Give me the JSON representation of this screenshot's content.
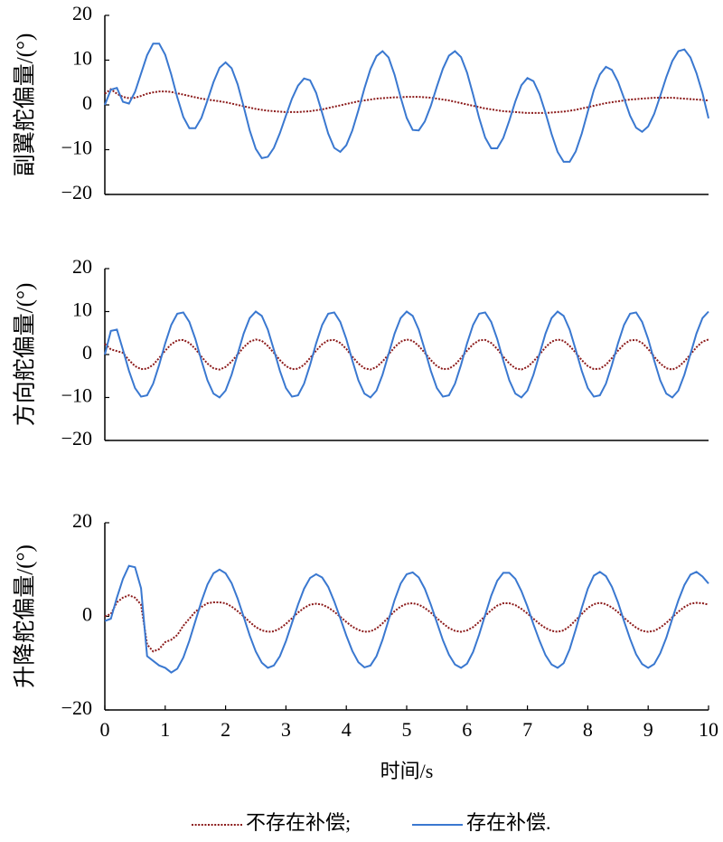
{
  "chart_data": [
    {
      "type": "line",
      "y_label": "副翼舵偏量/(°)",
      "x": [
        0,
        0.1,
        0.2,
        0.3,
        0.4,
        0.5,
        0.6,
        0.7,
        0.8,
        0.9,
        1,
        1.1,
        1.2,
        1.3,
        1.4,
        1.5,
        1.6,
        1.7,
        1.8,
        1.9,
        2,
        2.1,
        2.2,
        2.3,
        2.4,
        2.5,
        2.6,
        2.7,
        2.8,
        2.9,
        3,
        3.1,
        3.2,
        3.3,
        3.4,
        3.5,
        3.6,
        3.7,
        3.8,
        3.9,
        4,
        4.1,
        4.2,
        4.3,
        4.4,
        4.5,
        4.6,
        4.7,
        4.8,
        4.9,
        5,
        5.1,
        5.2,
        5.3,
        5.4,
        5.5,
        5.6,
        5.7,
        5.8,
        5.9,
        6,
        6.1,
        6.2,
        6.3,
        6.4,
        6.5,
        6.6,
        6.7,
        6.8,
        6.9,
        7,
        7.1,
        7.2,
        7.3,
        7.4,
        7.5,
        7.6,
        7.7,
        7.8,
        7.9,
        8,
        8.1,
        8.2,
        8.3,
        8.4,
        8.5,
        8.6,
        8.7,
        8.8,
        8.9,
        9,
        9.1,
        9.2,
        9.3,
        9.4,
        9.5,
        9.6,
        9.7,
        9.8,
        9.9,
        10
      ],
      "xlim": [
        0,
        10
      ],
      "ylim": [
        -20,
        20
      ],
      "yticks": [
        {
          "value": -20,
          "label": "−20"
        },
        {
          "value": -10,
          "label": "−10"
        },
        0,
        10,
        20
      ],
      "series": [
        {
          "color": "#8b1a1a",
          "style": "dotted",
          "values": [
            2.5,
            3.5,
            2.5,
            1.8,
            1.5,
            1.6,
            2.0,
            2.5,
            2.8,
            3.0,
            3.0,
            2.9,
            2.6,
            2.3,
            2.0,
            1.7,
            1.4,
            1.2,
            1.0,
            0.8,
            0.6,
            0.3,
            0.0,
            -0.3,
            -0.6,
            -0.9,
            -1.1,
            -1.3,
            -1.4,
            -1.5,
            -1.6,
            -1.6,
            -1.6,
            -1.5,
            -1.4,
            -1.2,
            -1.0,
            -0.7,
            -0.4,
            -0.1,
            0.2,
            0.5,
            0.8,
            1.0,
            1.2,
            1.4,
            1.5,
            1.6,
            1.7,
            1.7,
            1.8,
            1.8,
            1.8,
            1.7,
            1.6,
            1.4,
            1.2,
            1.0,
            0.7,
            0.4,
            0.1,
            -0.2,
            -0.5,
            -0.8,
            -1.0,
            -1.2,
            -1.4,
            -1.5,
            -1.6,
            -1.7,
            -1.8,
            -1.8,
            -1.8,
            -1.8,
            -1.7,
            -1.6,
            -1.5,
            -1.3,
            -1.1,
            -0.8,
            -0.5,
            -0.2,
            0.1,
            0.4,
            0.6,
            0.8,
            1.0,
            1.2,
            1.3,
            1.4,
            1.5,
            1.6,
            1.6,
            1.6,
            1.6,
            1.5,
            1.4,
            1.3,
            1.2,
            1.1,
            1.0
          ]
        },
        {
          "color": "#3a78d0",
          "style": "solid",
          "values": [
            0,
            3.4,
            3.8,
            0.7,
            0.3,
            2.9,
            7,
            11.1,
            13.7,
            13.7,
            11.2,
            6.8,
            1.7,
            -2.7,
            -5.2,
            -5.2,
            -2.9,
            1.0,
            5.1,
            8.3,
            9.5,
            8.2,
            4.6,
            -0.4,
            -5.7,
            -9.8,
            -11.9,
            -11.6,
            -9.6,
            -6.3,
            -2.4,
            1.4,
            4.3,
            5.9,
            5.5,
            2.7,
            -1.8,
            -6.4,
            -9.6,
            -10.5,
            -9.0,
            -5.7,
            -1.2,
            3.7,
            8.0,
            10.9,
            12,
            10.6,
            6.7,
            1.7,
            -2.9,
            -5.6,
            -5.7,
            -3.7,
            -0.2,
            4.1,
            8.1,
            11.0,
            12,
            10.7,
            7.2,
            2.3,
            -2.9,
            -7.3,
            -9.7,
            -9.7,
            -7.4,
            -3.5,
            0.8,
            4.4,
            6.0,
            5.3,
            2.4,
            -1.8,
            -6.5,
            -10.5,
            -12.7,
            -12.7,
            -10.4,
            -6.4,
            -1.5,
            3.3,
            6.8,
            8.5,
            7.8,
            5.2,
            1.5,
            -2.4,
            -5.1,
            -6.0,
            -4.8,
            -2.0,
            2.0,
            6.2,
            9.8,
            12.0,
            12.4,
            10.6,
            7.1,
            2.6,
            -3
          ]
        }
      ]
    },
    {
      "type": "line",
      "y_label": "方向舵偏量/(°)",
      "x": [
        0,
        0.1,
        0.2,
        0.3,
        0.4,
        0.5,
        0.6,
        0.7,
        0.8,
        0.9,
        1,
        1.1,
        1.2,
        1.3,
        1.4,
        1.5,
        1.6,
        1.7,
        1.8,
        1.9,
        2,
        2.1,
        2.2,
        2.3,
        2.4,
        2.5,
        2.6,
        2.7,
        2.8,
        2.9,
        3,
        3.1,
        3.2,
        3.3,
        3.4,
        3.5,
        3.6,
        3.7,
        3.8,
        3.9,
        4,
        4.1,
        4.2,
        4.3,
        4.4,
        4.5,
        4.6,
        4.7,
        4.8,
        4.9,
        5,
        5.1,
        5.2,
        5.3,
        5.4,
        5.5,
        5.6,
        5.7,
        5.8,
        5.9,
        6,
        6.1,
        6.2,
        6.3,
        6.4,
        6.5,
        6.6,
        6.7,
        6.8,
        6.9,
        7,
        7.1,
        7.2,
        7.3,
        7.4,
        7.5,
        7.6,
        7.7,
        7.8,
        7.9,
        8,
        8.1,
        8.2,
        8.3,
        8.4,
        8.5,
        8.6,
        8.7,
        8.8,
        8.9,
        9,
        9.1,
        9.2,
        9.3,
        9.4,
        9.5,
        9.6,
        9.7,
        9.8,
        9.9,
        10
      ],
      "xlim": [
        0,
        10
      ],
      "ylim": [
        -20,
        20
      ],
      "yticks": [
        {
          "value": -20,
          "label": "−20"
        },
        {
          "value": -10,
          "label": "−10"
        },
        0,
        10,
        20
      ],
      "series": [
        {
          "color": "#8b1a1a",
          "style": "dotted",
          "values": [
            2.5,
            1.2,
            0.8,
            0.4,
            -1.3,
            -2.7,
            -3.4,
            -3.3,
            -2.4,
            -0.8,
            0.9,
            2.4,
            3.3,
            3.4,
            2.7,
            1.3,
            -0.5,
            -2.1,
            -3.2,
            -3.5,
            -2.9,
            -1.6,
            0.0,
            1.7,
            3.0,
            3.5,
            3.2,
            2.0,
            0.4,
            -1.3,
            -2.7,
            -3.4,
            -3.3,
            -2.4,
            -0.8,
            0.9,
            2.4,
            3.3,
            3.4,
            2.7,
            1.3,
            -0.5,
            -2.1,
            -3.2,
            -3.5,
            -2.9,
            -1.6,
            0.0,
            1.7,
            3.0,
            3.5,
            3.2,
            2.0,
            0.4,
            -1.3,
            -2.7,
            -3.4,
            -3.3,
            -2.4,
            -0.8,
            0.9,
            2.4,
            3.3,
            3.4,
            2.7,
            1.3,
            -0.5,
            -2.1,
            -3.2,
            -3.5,
            -2.9,
            -1.6,
            0.0,
            1.7,
            3.0,
            3.5,
            3.2,
            2.0,
            0.4,
            -1.3,
            -2.7,
            -3.4,
            -3.3,
            -2.4,
            -0.8,
            0.9,
            2.4,
            3.3,
            3.4,
            2.7,
            1.3,
            -0.5,
            -2.1,
            -3.2,
            -3.5,
            -2.9,
            -1.6,
            0.0,
            1.7,
            3.0,
            3.5
          ]
        },
        {
          "color": "#3a78d0",
          "style": "solid",
          "values": [
            0,
            5.5,
            5.8,
            1.1,
            -3.8,
            -7.8,
            -9.8,
            -9.5,
            -6.8,
            -2.4,
            2.6,
            6.9,
            9.5,
            9.8,
            7.6,
            3.6,
            -1.4,
            -6.0,
            -9.1,
            -10.0,
            -8.4,
            -4.7,
            0.1,
            4.9,
            8.5,
            10.0,
            9.0,
            5.8,
            1.1,
            -3.8,
            -7.8,
            -9.8,
            -9.5,
            -6.8,
            -2.4,
            2.6,
            6.9,
            9.5,
            9.8,
            7.6,
            3.6,
            -1.4,
            -6.0,
            -9.1,
            -10.0,
            -8.4,
            -4.7,
            0.1,
            4.9,
            8.5,
            10.0,
            9.0,
            5.8,
            1.1,
            -3.8,
            -7.8,
            -9.8,
            -9.5,
            -6.8,
            -2.4,
            2.6,
            6.9,
            9.5,
            9.8,
            7.6,
            3.6,
            -1.4,
            -6.0,
            -9.1,
            -10.0,
            -8.4,
            -4.7,
            0.1,
            4.9,
            8.5,
            10.0,
            9.0,
            5.8,
            1.1,
            -3.8,
            -7.8,
            -9.8,
            -9.5,
            -6.8,
            -2.4,
            2.6,
            6.9,
            9.5,
            9.8,
            7.6,
            3.6,
            -1.4,
            -6.0,
            -9.1,
            -10.0,
            -8.4,
            -4.7,
            0.1,
            4.9,
            8.5,
            10.0
          ]
        }
      ]
    },
    {
      "type": "line",
      "y_label": "升降舵偏量/(°)",
      "x_label": "时间/s",
      "legend": "bottom",
      "x": [
        0,
        0.1,
        0.2,
        0.3,
        0.4,
        0.5,
        0.6,
        0.7,
        0.8,
        0.9,
        1,
        1.1,
        1.2,
        1.3,
        1.4,
        1.5,
        1.6,
        1.7,
        1.8,
        1.9,
        2,
        2.1,
        2.2,
        2.3,
        2.4,
        2.5,
        2.6,
        2.7,
        2.8,
        2.9,
        3,
        3.1,
        3.2,
        3.3,
        3.4,
        3.5,
        3.6,
        3.7,
        3.8,
        3.9,
        4,
        4.1,
        4.2,
        4.3,
        4.4,
        4.5,
        4.6,
        4.7,
        4.8,
        4.9,
        5,
        5.1,
        5.2,
        5.3,
        5.4,
        5.5,
        5.6,
        5.7,
        5.8,
        5.9,
        6,
        6.1,
        6.2,
        6.3,
        6.4,
        6.5,
        6.6,
        6.7,
        6.8,
        6.9,
        7,
        7.1,
        7.2,
        7.3,
        7.4,
        7.5,
        7.6,
        7.7,
        7.8,
        7.9,
        8,
        8.1,
        8.2,
        8.3,
        8.4,
        8.5,
        8.6,
        8.7,
        8.8,
        8.9,
        9,
        9.1,
        9.2,
        9.3,
        9.4,
        9.5,
        9.6,
        9.7,
        9.8,
        9.9,
        10
      ],
      "xlim": [
        0,
        10
      ],
      "ylim": [
        -20,
        20
      ],
      "xticks": [
        0,
        1,
        2,
        3,
        4,
        5,
        6,
        7,
        8,
        9,
        10
      ],
      "yticks": [
        {
          "value": -20,
          "label": "−20"
        },
        0,
        20
      ],
      "series": [
        {
          "name": "不存在补偿;",
          "color": "#8b1a1a",
          "style": "dotted",
          "values": [
            0,
            0.5,
            3,
            4,
            4.5,
            4,
            2.5,
            -6,
            -7.5,
            -7,
            -5.5,
            -5,
            -4,
            -2,
            -0.5,
            1,
            2,
            2.8,
            3,
            3.0,
            2.8,
            2.1,
            1.1,
            0.0,
            -1.2,
            -2.3,
            -3.0,
            -3.3,
            -3.2,
            -2.6,
            -1.6,
            -0.4,
            0.8,
            1.8,
            2.5,
            2.7,
            2.5,
            1.9,
            1.0,
            -0.1,
            -1.2,
            -2.2,
            -2.9,
            -3.3,
            -3.2,
            -2.6,
            -1.5,
            -0.2,
            1.1,
            2.1,
            2.7,
            2.8,
            2.5,
            1.8,
            0.8,
            -0.4,
            -1.5,
            -2.5,
            -3.1,
            -3.3,
            -3.0,
            -2.3,
            -1.2,
            0.1,
            1.3,
            2.3,
            2.8,
            2.8,
            2.4,
            1.6,
            0.6,
            -0.5,
            -1.6,
            -2.5,
            -3.1,
            -3.3,
            -3.0,
            -2.1,
            -0.8,
            0.5,
            1.8,
            2.6,
            2.9,
            2.6,
            1.9,
            0.9,
            -0.3,
            -1.4,
            -2.4,
            -3.1,
            -3.3,
            -3.1,
            -2.4,
            -1.4,
            -0.2,
            1.0,
            2.0,
            2.7,
            2.9,
            2.8,
            2.5
          ]
        },
        {
          "name": "存在补偿.",
          "color": "#3a78d0",
          "style": "solid",
          "values": [
            -1,
            -0.5,
            4,
            8,
            10.8,
            10.5,
            6,
            -8.5,
            -9.5,
            -10.5,
            -11,
            -12,
            -11.2,
            -8.8,
            -5.2,
            -1.0,
            3.2,
            6.8,
            9.2,
            10,
            9.2,
            7.1,
            3.8,
            -0.1,
            -4.1,
            -7.5,
            -9.9,
            -11.0,
            -10.5,
            -8.5,
            -5.3,
            -1.4,
            2.5,
            5.9,
            8.2,
            9,
            8.3,
            6.3,
            3.2,
            -0.4,
            -4.1,
            -7.4,
            -9.8,
            -10.9,
            -10.5,
            -8.5,
            -5.0,
            -0.8,
            3.5,
            7.0,
            9.0,
            9.4,
            8.3,
            5.9,
            2.5,
            -1.3,
            -5.1,
            -8.2,
            -10.3,
            -11,
            -10.1,
            -7.6,
            -3.9,
            0.3,
            4.4,
            7.6,
            9.3,
            9.3,
            8.0,
            5.4,
            2.1,
            -1.7,
            -5.2,
            -8.3,
            -10.3,
            -11,
            -10.0,
            -7.0,
            -2.8,
            1.8,
            5.9,
            8.7,
            9.5,
            8.6,
            6.3,
            3.0,
            -1.0,
            -4.8,
            -8.1,
            -10.2,
            -11,
            -10.2,
            -7.9,
            -4.6,
            -0.5,
            3.4,
            6.7,
            8.9,
            9.5,
            8.5,
            7.0
          ]
        }
      ]
    }
  ]
}
